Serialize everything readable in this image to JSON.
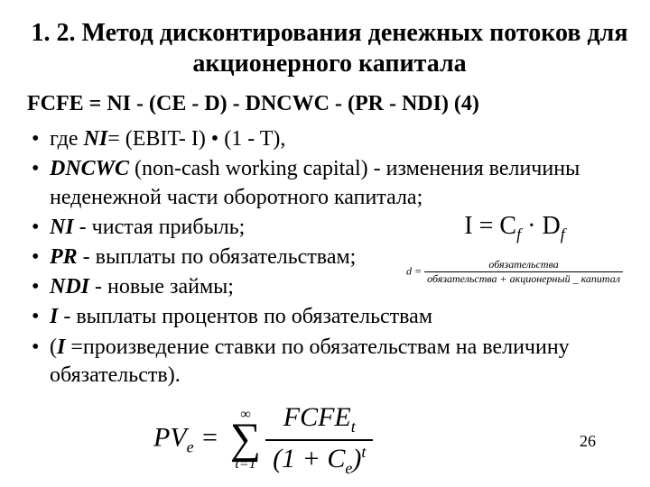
{
  "title": "1. 2. Метод дисконтирования денежных потоков для акционерного капитала",
  "formula": "FCFE = NI - (CE - D) - DNCWC - (PR - NDI) (4)",
  "items": [
    {
      "pre": "где ",
      "sym": "NI",
      "after": "= (EBIT- I) • (1 - T),"
    },
    {
      "pre": "",
      "sym": "DNCWC",
      "after": " (non-cash working capital) - изменения величины неденежной части оборотного капитала;"
    },
    {
      "pre": "",
      "sym": "NI",
      "after": " - чистая прибыль;"
    },
    {
      "pre": "",
      "sym": "PR",
      "after": " - выплаты по обязательствам;"
    },
    {
      "pre": "",
      "sym": "NDI",
      "after": " - новые займы;"
    },
    {
      "pre": "",
      "sym": "I",
      "after": " - выплаты процентов по обязательствам"
    },
    {
      "pre": "(",
      "sym": "I ",
      "after": "=произведение ставки по обязательствам на величину обязательств)."
    }
  ],
  "eq1": {
    "left": "I",
    "eq": " = ",
    "c": "C",
    "csub": "f",
    "dot": " · ",
    "d": "D",
    "dsub": "f"
  },
  "eq2": {
    "lhs": "d = ",
    "top": "обязательства",
    "bot": "обязательства + акционерный _ капитал"
  },
  "bigeq": {
    "pv": "PV",
    "pvsub": "e",
    "eq": " = ",
    "sigtop": "∞",
    "sigma": "∑",
    "sigbot": "t=1",
    "numL": "FCFE",
    "numSub": "t",
    "denA": "(1 + ",
    "denC": "C",
    "denCsub": "e",
    "denB": ")",
    "denSup": "t"
  },
  "pagenum": "26"
}
